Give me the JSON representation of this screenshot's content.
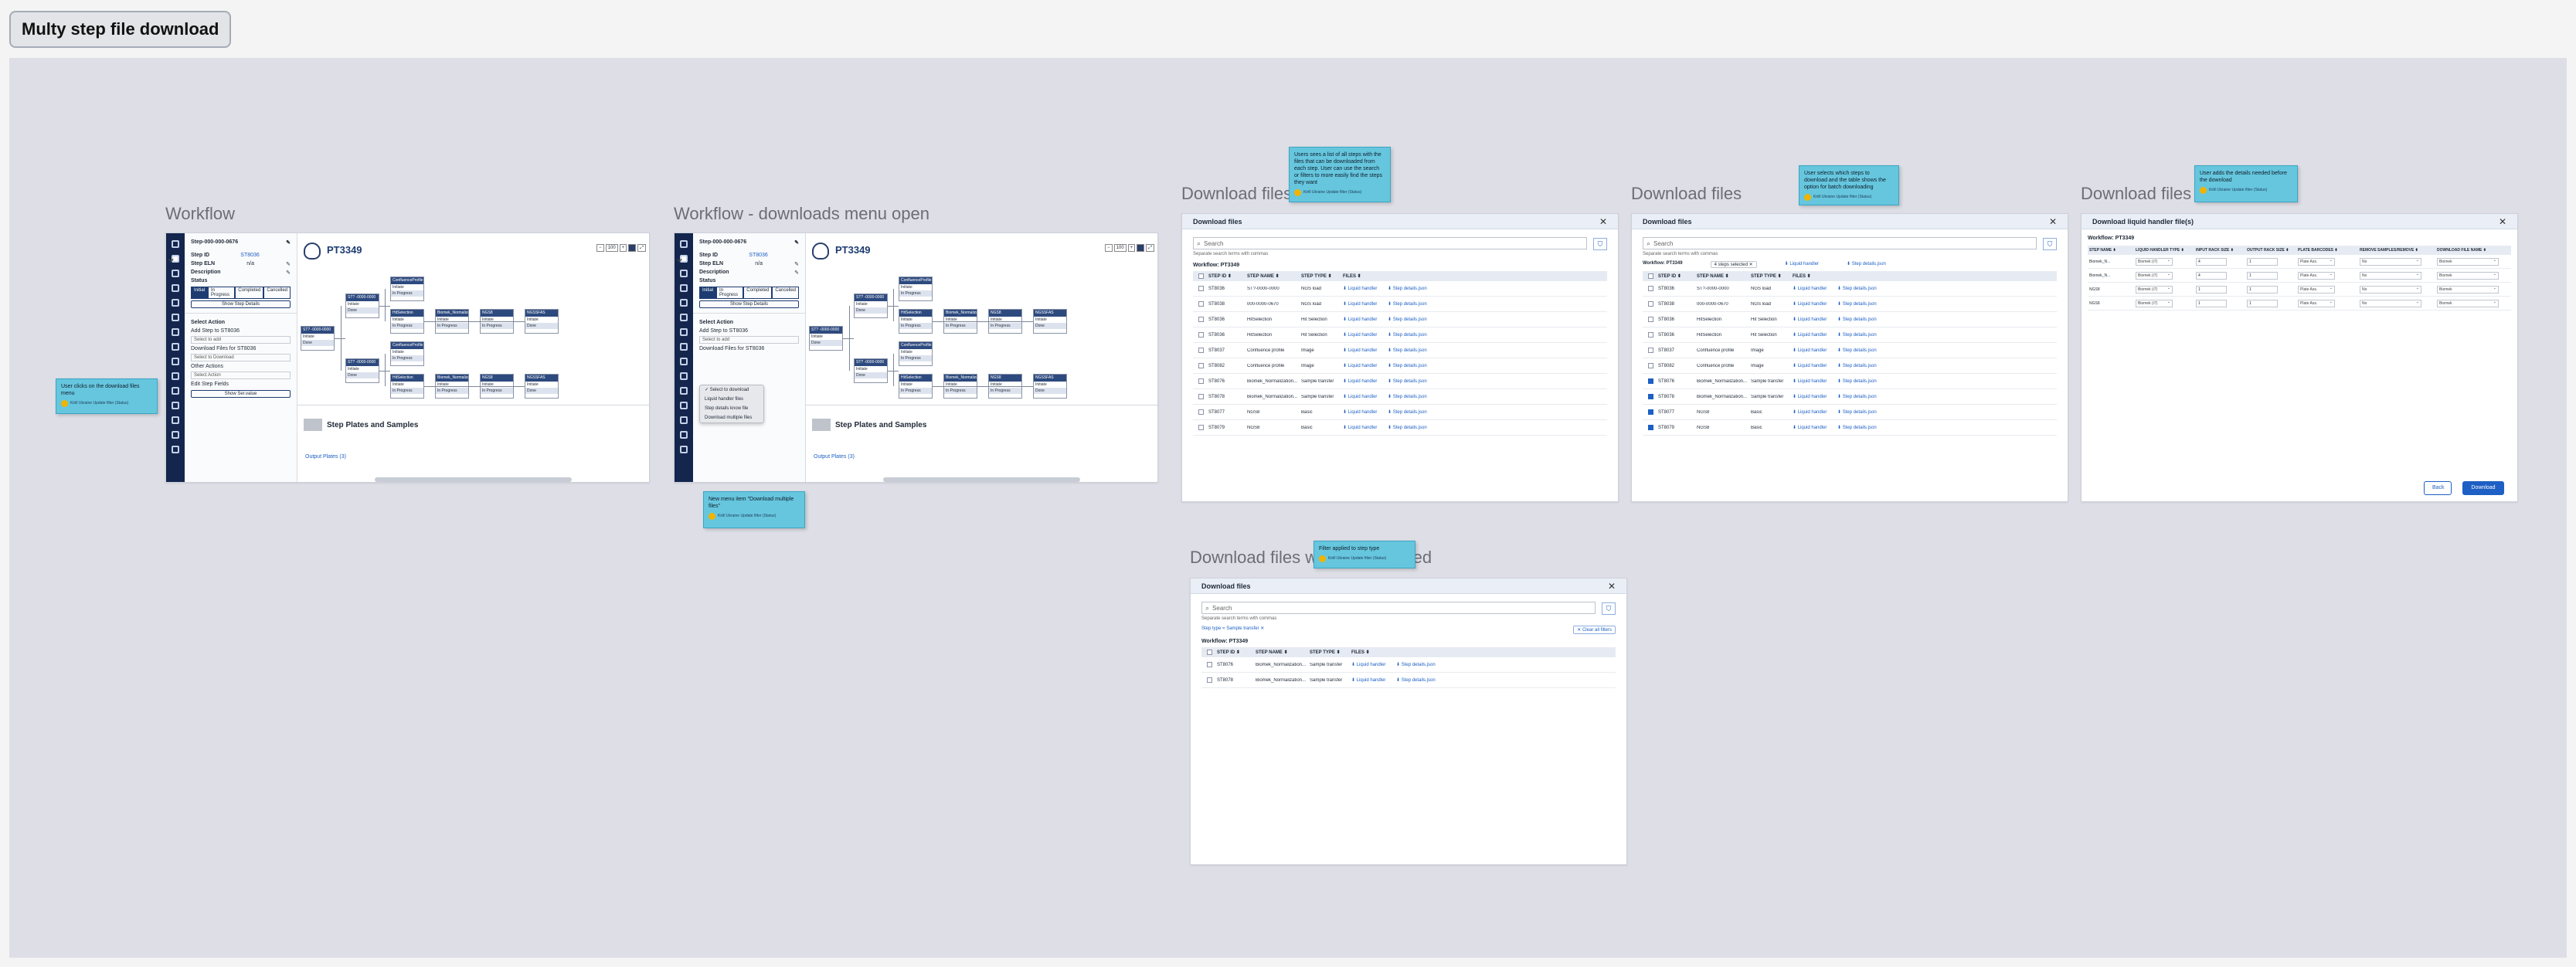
{
  "page": {
    "title": "Multy step file download"
  },
  "frame1": {
    "title": "Workflow",
    "step_id_header": "Step-000-000-0676",
    "step_id_label": "Step ID",
    "step_id_value": "ST8036",
    "step_eln_label": "Step ELN",
    "step_eln_value": "n/a",
    "description_label": "Description",
    "status_label": "Status",
    "status_tabs": [
      "Initial",
      "In Progress",
      "Completed",
      "Cancelled"
    ],
    "show_step_details": "Show Step Details",
    "select_action_title": "Select Action",
    "add_step_label": "Add Step to ST8036",
    "select_to_add": "Select to add",
    "download_files_label": "Download Files for ST8036",
    "select_to_download": "Select to Download",
    "other_actions_label": "Other Actions",
    "select_action": "Select Action",
    "edit_step_fields": "Edit Step Fields",
    "show_servalue": "Show Ser.value",
    "workflow_title": "PT3349",
    "zoom_level": "100",
    "step_plates_title": "Step Plates and Samples",
    "output_plates": "Output Plates (3)",
    "nodes": [
      {
        "title": "ST? -0000-0000",
        "line1": "Initiate",
        "line2": "Done"
      },
      {
        "title": "ST? -0000-0000",
        "line1": "Initiate",
        "line2": "Done"
      },
      {
        "title": "ST? -0000-0000",
        "line1": "Initiate",
        "line2": "Done"
      },
      {
        "title": "ConfluenceProfile",
        "line1": "Initiate",
        "line2": "In Progress"
      },
      {
        "title": "HitSelection",
        "line1": "Initiate",
        "line2": "In Progress"
      },
      {
        "title": "Biomek_Normaliza...",
        "line1": "Initiate",
        "line2": "In Progress"
      },
      {
        "title": "NGS8",
        "line1": "Initiate",
        "line2": "In Progress"
      },
      {
        "title": "NGSSFAS",
        "line1": "Initiate",
        "line2": "Done"
      },
      {
        "title": "ConfluenceProfile",
        "line1": "Initiate",
        "line2": "In Progress"
      },
      {
        "title": "HitSelection",
        "line1": "Initiate",
        "line2": "In Progress"
      },
      {
        "title": "Biomek_Normaliza...",
        "line1": "Initiate",
        "line2": "In Progress"
      },
      {
        "title": "NGS8",
        "line1": "Initiate",
        "line2": "In Progress"
      },
      {
        "title": "NGSSFAS",
        "line1": "Initiate",
        "line2": "Done"
      }
    ],
    "note": {
      "text": "User clicks on the download files menu",
      "author": "Kirill Ukraine Update filter (Status)"
    }
  },
  "frame2": {
    "title": "Workflow - downloads menu open",
    "menu_items": [
      "✓ Select to download",
      "Liquid handler files",
      "Step details know file",
      "Download multiple files"
    ],
    "note": {
      "text": "New menu item \"Download multiple files\"",
      "author": "Kirill Ukraine Update filter (Status)"
    }
  },
  "frame3": {
    "title": "Download files",
    "dialog_title": "Download files",
    "search_placeholder": "Search",
    "search_hint": "Separate search terms with commas",
    "workflow_label": "Workflow: PT3349",
    "columns": [
      "STEP ID ⬍",
      "STEP NAME ⬍",
      "STEP TYPE ⬍",
      "FILES ⬍"
    ],
    "rows": [
      {
        "id": "ST8036",
        "name": "ST?-0000-0000",
        "type": "NGS load",
        "f1": "Liquid handler",
        "f2": "Step details.json",
        "checked": false
      },
      {
        "id": "ST8038",
        "name": "000-0000-0670",
        "type": "NGS load",
        "f1": "Liquid handler",
        "f2": "Step details.json",
        "checked": false
      },
      {
        "id": "ST8036",
        "name": "HitSelection",
        "type": "Hit Selection",
        "f1": "Liquid handler",
        "f2": "Step details.json",
        "checked": false
      },
      {
        "id": "ST8036",
        "name": "HitSelection",
        "type": "Hit Selection",
        "f1": "Liquid handler",
        "f2": "Step details.json",
        "checked": false
      },
      {
        "id": "ST8037",
        "name": "Confluence profile",
        "type": "Image",
        "f1": "Liquid handler",
        "f2": "Step details.json",
        "checked": false
      },
      {
        "id": "ST8082",
        "name": "Confluence profile",
        "type": "Image",
        "f1": "Liquid handler",
        "f2": "Step details.json",
        "checked": false
      },
      {
        "id": "ST8076",
        "name": "Biomek_Normalization...",
        "type": "Sample transfer",
        "f1": "Liquid handler",
        "f2": "Step details.json",
        "checked": false
      },
      {
        "id": "ST8078",
        "name": "Biomek_Normalization...",
        "type": "Sample transfer",
        "f1": "Liquid handler",
        "f2": "Step details.json",
        "checked": false
      },
      {
        "id": "ST8077",
        "name": "NGS8",
        "type": "Basic",
        "f1": "Liquid handler",
        "f2": "Step details.json",
        "checked": false
      },
      {
        "id": "ST8079",
        "name": "NGS8",
        "type": "Basic",
        "f1": "Liquid handler",
        "f2": "Step details.json",
        "checked": false
      }
    ],
    "note": {
      "text": "Users sees a list of all steps with the files that can be downloaded from each step. User can use the search or filters to more easily find the steps they want",
      "author": "Kirill Ukraine Update filter (Status)"
    }
  },
  "frame4": {
    "title": "Download files",
    "selected_count": "4 steps selected",
    "liquid_handler_chip": "Liquid handler",
    "step_details_chip": "Step details.json",
    "checked_rows": [
      false,
      false,
      false,
      false,
      false,
      false,
      true,
      true,
      true,
      true
    ],
    "note": {
      "text": "User selects which steps to download and the table shows the option for batch downloading",
      "author": "Kirill Ukraine Update filter (Status)"
    }
  },
  "frame5": {
    "title": "Download files",
    "dialog_title": "Download liquid handler file(s)",
    "workflow_label": "Workflow: PT3349",
    "columns": [
      "STEP NAME ⬍",
      "LIQUID HANDLER TYPE ⬍",
      "INPUT RACK SIZE ⬍",
      "OUTPUT RACK SIZE ⬍",
      "PLATE BARCODES ⬍",
      "REMOVE SAMPLES/REMOVE ⬍",
      "DOWNLOAD FILE NAME ⬍"
    ],
    "rows": [
      {
        "name": "Biomek_N...",
        "lh": "Biomek (i7)",
        "in": "4",
        "out": "1",
        "pb": "Plate Ass.",
        "rm": "No",
        "fn": "Biomek"
      },
      {
        "name": "Biomek_N...",
        "lh": "Biomek (i7)",
        "in": "4",
        "out": "1",
        "pb": "Plate Ass.",
        "rm": "No",
        "fn": "Biomek"
      },
      {
        "name": "NGS8",
        "lh": "Biomek (i7)",
        "in": "1",
        "out": "1",
        "pb": "Plate Ass.",
        "rm": "No",
        "fn": "Biomek"
      },
      {
        "name": "NGS8",
        "lh": "Biomek (i7)",
        "in": "1",
        "out": "1",
        "pb": "Plate Ass.",
        "rm": "No",
        "fn": "Biomek"
      }
    ],
    "back_label": "Back",
    "download_label": "Download",
    "note": {
      "text": "User adds the details needed before the download",
      "author": "Kirill Ukraine Update filter (Status)"
    }
  },
  "frame6": {
    "title": "Download files with filter applied",
    "applied_link": "Step type = Sample transfer ✕",
    "clear_filters": "✕ Clear all filters",
    "rows": [
      {
        "id": "ST8076",
        "name": "Biomek_Normalization...",
        "type": "Sample transfer",
        "f1": "Liquid handler",
        "f2": "Step details.json"
      },
      {
        "id": "ST8078",
        "name": "Biomek_Normalization...",
        "type": "Sample transfer",
        "f1": "Liquid handler",
        "f2": "Step details.json"
      }
    ],
    "note": {
      "text": "Filter applied to step type",
      "author": "Kirill Ukraine Update filter (Status)"
    }
  },
  "icons": {
    "close": "close-icon",
    "search": "search-icon",
    "filter": "filter-icon"
  },
  "colors": {
    "navy": "#14264d",
    "accent": "#1d5fc4",
    "note": "#66c6de"
  }
}
